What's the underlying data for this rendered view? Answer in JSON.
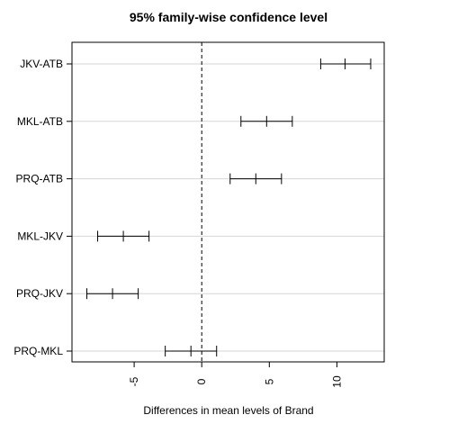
{
  "chart_data": {
    "type": "errorbar",
    "orientation": "horizontal",
    "title": "95% family-wise confidence level",
    "xlabel": "Differences in mean levels of Brand",
    "ylabel": "",
    "xlim": [
      -9.6,
      13.5
    ],
    "x_ticks": [
      -5,
      0,
      5,
      10
    ],
    "x_tick_labels": [
      "-5",
      "0",
      "5",
      "10"
    ],
    "reference_line": 0,
    "grid": "horizontal",
    "comparisons": [
      {
        "label": "JKV-ATB",
        "lwr": 8.8,
        "diff": 10.6,
        "upr": 12.5
      },
      {
        "label": "MKL-ATB",
        "lwr": 2.9,
        "diff": 4.8,
        "upr": 6.7
      },
      {
        "label": "PRQ-ATB",
        "lwr": 2.1,
        "diff": 4.0,
        "upr": 5.9
      },
      {
        "label": "MKL-JKV",
        "lwr": -7.7,
        "diff": -5.8,
        "upr": -3.9
      },
      {
        "label": "PRQ-JKV",
        "lwr": -8.5,
        "diff": -6.6,
        "upr": -4.7
      },
      {
        "label": "PRQ-MKL",
        "lwr": -2.7,
        "diff": -0.8,
        "upr": 1.1
      }
    ]
  }
}
